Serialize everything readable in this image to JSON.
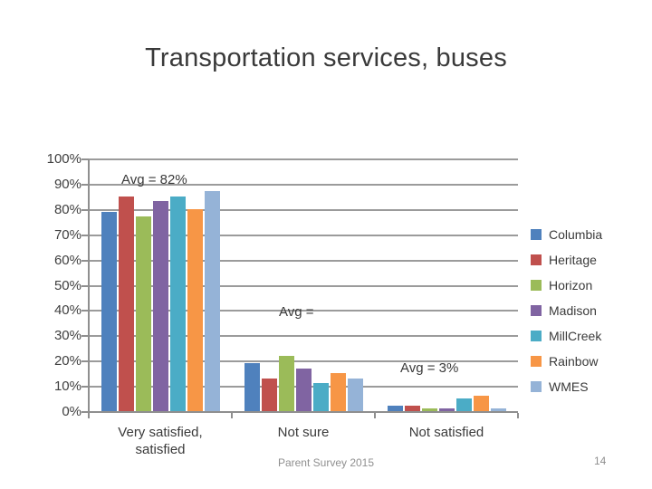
{
  "slide": {
    "title": "Transportation services, buses",
    "footer_text": "Parent Survey 2015",
    "page_number": "14"
  },
  "chart_data": {
    "type": "bar",
    "title": "Transportation services, buses",
    "categories": [
      "Very satisfied, satisfied",
      "Not sure",
      "Not satisfied"
    ],
    "series": [
      {
        "name": "Columbia",
        "color": "#4F81BD",
        "values": [
          79,
          19,
          2
        ]
      },
      {
        "name": "Heritage",
        "color": "#C0504D",
        "values": [
          85,
          13,
          2
        ]
      },
      {
        "name": "Horizon",
        "color": "#9BBB59",
        "values": [
          77,
          22,
          1
        ]
      },
      {
        "name": "Madison",
        "color": "#8064A2",
        "values": [
          83,
          17,
          1
        ]
      },
      {
        "name": "MillCreek",
        "color": "#4BACC6",
        "values": [
          85,
          11,
          5
        ]
      },
      {
        "name": "Rainbow",
        "color": "#F79646",
        "values": [
          80,
          15,
          6
        ]
      },
      {
        "name": "WMES",
        "color": "#95B3D7",
        "values": [
          87,
          13,
          1
        ]
      }
    ],
    "annotations": [
      {
        "text": "Avg = 82%"
      },
      {
        "text": "Avg ="
      },
      {
        "text": "Avg = 3%"
      }
    ],
    "ylim": [
      0,
      100
    ],
    "ytick_step": 10,
    "ytick_suffix": "%",
    "grid": true,
    "legend_position": "right",
    "xlabel": "",
    "ylabel": ""
  }
}
